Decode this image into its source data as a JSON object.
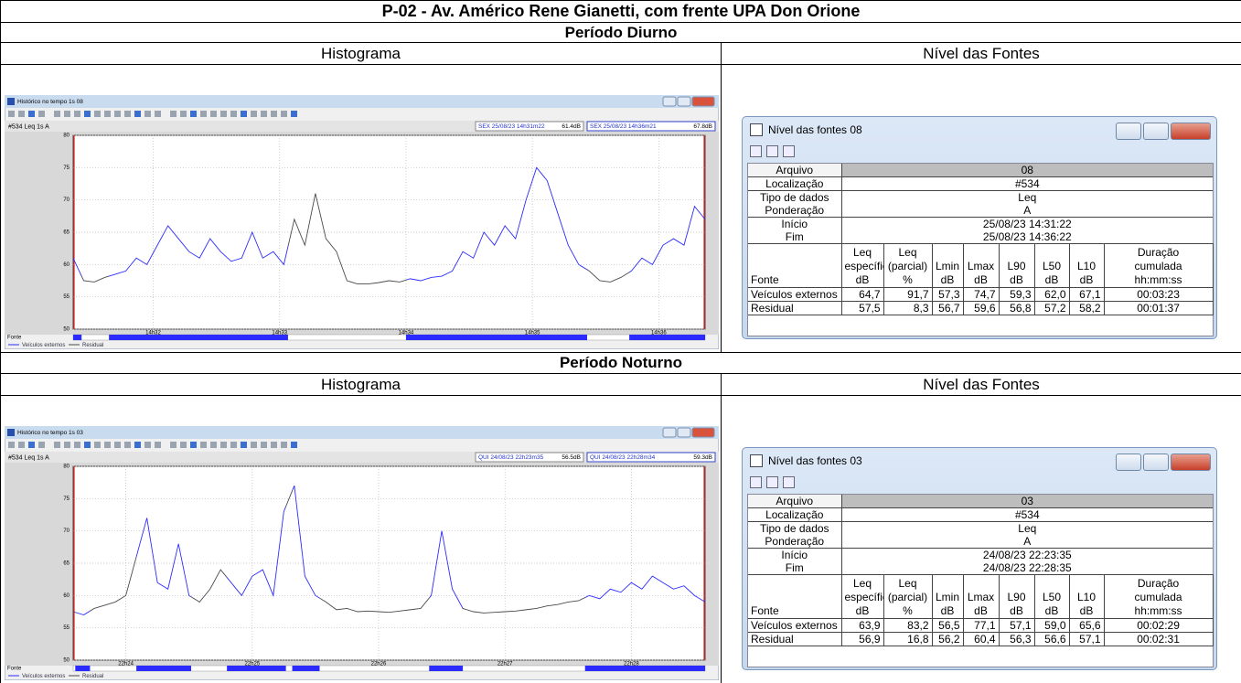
{
  "header": {
    "title": "P-02 -  Av. Américo Rene Gianetti, com frente UPA Don Orione"
  },
  "sections": [
    {
      "period": "Período Diurno",
      "left_heading": "Histograma",
      "right_heading": "Nível das Fontes",
      "histogram": {
        "window_title": "Histórico no tempo 1s 08",
        "channel": "#534  Leq 1s  A",
        "cursors": [
          {
            "time": "SEX 25/08/23 14h31m22",
            "level": "61.4dB"
          },
          {
            "time": "SEX 25/08/23 14h36m21",
            "level": "67.8dB"
          }
        ],
        "xlim": [
          0,
          300
        ],
        "xticks": [
          {
            "value": 38,
            "label": "14h32"
          },
          {
            "value": 98,
            "label": "14h33"
          },
          {
            "value": 158,
            "label": "14h34"
          },
          {
            "value": 218,
            "label": "14h35"
          },
          {
            "value": 278,
            "label": "14h36"
          }
        ],
        "ylim": [
          50,
          80
        ],
        "yticks": [
          50,
          55,
          60,
          65,
          70,
          75,
          80
        ],
        "x": [
          0,
          5,
          10,
          15,
          20,
          25,
          30,
          35,
          40,
          45,
          50,
          55,
          60,
          65,
          70,
          75,
          80,
          85,
          90,
          95,
          100,
          105,
          110,
          115,
          120,
          125,
          130,
          135,
          140,
          145,
          150,
          155,
          160,
          165,
          170,
          175,
          180,
          185,
          190,
          195,
          200,
          205,
          210,
          215,
          220,
          225,
          230,
          235,
          240,
          245,
          250,
          255,
          260,
          265,
          270,
          275,
          280,
          285,
          290,
          295,
          300
        ],
        "values": [
          61,
          57.5,
          57.3,
          58,
          58.5,
          59,
          61,
          60,
          63,
          66,
          64,
          62,
          61,
          64,
          62,
          60.5,
          61,
          65,
          61,
          62,
          60,
          67,
          63,
          71,
          64,
          62,
          57.5,
          57,
          57,
          57.2,
          57.5,
          57.3,
          57.8,
          57.5,
          58,
          58.2,
          59,
          62,
          61,
          65,
          63,
          66,
          64,
          70,
          75,
          73,
          68,
          63,
          60,
          59,
          57.5,
          57.3,
          58,
          59,
          61,
          60,
          63,
          64,
          63,
          69,
          67
        ],
        "source_label": "Fonte",
        "source_segments": [
          [
            0,
            4
          ],
          [
            17,
            102
          ],
          [
            158,
            244
          ],
          [
            264,
            300
          ]
        ],
        "legend": [
          {
            "name": "Veículos externos",
            "color": "#2b2bff"
          },
          {
            "name": "Residual",
            "color": "#4a4a4a"
          }
        ]
      },
      "sources": {
        "window_title": "Nível das fontes  08",
        "info": [
          {
            "label": "Arquivo",
            "value": "08"
          },
          {
            "label": "Localização",
            "value": "#534"
          },
          {
            "label": "Tipo de dados",
            "value": "Leq"
          },
          {
            "label": "Ponderação",
            "value": "A"
          },
          {
            "label": "Início",
            "value": "25/08/23 14:31:22"
          },
          {
            "label": "Fim",
            "value": "25/08/23 14:36:22"
          }
        ],
        "columns": [
          [
            "Fonte"
          ],
          [
            "Leq",
            "específico",
            "dB"
          ],
          [
            "Leq",
            "(parcial)",
            "%"
          ],
          [
            "Lmin",
            "dB"
          ],
          [
            "Lmax",
            "dB"
          ],
          [
            "L90",
            "dB"
          ],
          [
            "L50",
            "dB"
          ],
          [
            "L10",
            "dB"
          ],
          [
            "Duração",
            "cumulada",
            "hh:mm:ss"
          ]
        ],
        "rows": [
          [
            "Veículos externos",
            "64,7",
            "91,7",
            "57,3",
            "74,7",
            "59,3",
            "62,0",
            "67,1",
            "00:03:23"
          ],
          [
            "Residual",
            "57,5",
            "8,3",
            "56,7",
            "59,6",
            "56,8",
            "57,2",
            "58,2",
            "00:01:37"
          ]
        ]
      }
    },
    {
      "period": "Período Noturno",
      "left_heading": "Histograma",
      "right_heading": "Nível das Fontes",
      "histogram": {
        "window_title": "Histórico no tempo 1s 03",
        "channel": "#534  Leq 1s  A",
        "cursors": [
          {
            "time": "QUI 24/08/23 22h23m35",
            "level": "56.5dB"
          },
          {
            "time": "QUI 24/08/23 22h28m34",
            "level": "59.3dB"
          }
        ],
        "xlim": [
          0,
          300
        ],
        "xticks": [
          {
            "value": 25,
            "label": "22h24"
          },
          {
            "value": 85,
            "label": "22h25"
          },
          {
            "value": 145,
            "label": "22h26"
          },
          {
            "value": 205,
            "label": "22h27"
          },
          {
            "value": 265,
            "label": "22h28"
          }
        ],
        "ylim": [
          50,
          80
        ],
        "yticks": [
          50,
          55,
          60,
          65,
          70,
          75,
          80
        ],
        "x": [
          0,
          5,
          10,
          15,
          20,
          25,
          30,
          35,
          40,
          45,
          50,
          55,
          60,
          65,
          70,
          75,
          80,
          85,
          90,
          95,
          100,
          105,
          110,
          115,
          120,
          125,
          130,
          135,
          140,
          145,
          150,
          155,
          160,
          165,
          170,
          175,
          180,
          185,
          190,
          195,
          200,
          205,
          210,
          215,
          220,
          225,
          230,
          235,
          240,
          245,
          250,
          255,
          260,
          265,
          270,
          275,
          280,
          285,
          290,
          295,
          300
        ],
        "values": [
          57.5,
          57,
          58,
          58.5,
          59,
          60,
          66,
          72,
          62,
          61,
          68,
          60,
          59,
          61,
          64,
          62,
          60,
          63,
          64,
          60,
          73,
          77,
          63,
          60,
          59,
          57.8,
          58,
          57.5,
          57.6,
          57.5,
          57.4,
          57.6,
          57.8,
          58,
          60,
          70,
          61,
          58,
          57.5,
          57.3,
          57.4,
          57.5,
          57.6,
          57.8,
          58,
          58.4,
          58.6,
          59,
          59.2,
          60,
          59.5,
          61,
          60.5,
          62,
          61,
          63,
          62,
          61,
          61.5,
          60,
          59
        ],
        "source_label": "Fonte",
        "source_segments": [
          [
            1,
            8
          ],
          [
            30,
            56
          ],
          [
            73,
            101
          ],
          [
            104,
            117
          ],
          [
            169,
            185
          ],
          [
            243,
            300
          ]
        ],
        "legend": [
          {
            "name": "Veículos externos",
            "color": "#2b2bff"
          },
          {
            "name": "Residual",
            "color": "#4a4a4a"
          }
        ]
      },
      "sources": {
        "window_title": "Nível das fontes  03",
        "info": [
          {
            "label": "Arquivo",
            "value": "03"
          },
          {
            "label": "Localização",
            "value": "#534"
          },
          {
            "label": "Tipo de dados",
            "value": "Leq"
          },
          {
            "label": "Ponderação",
            "value": "A"
          },
          {
            "label": "Início",
            "value": "24/08/23 22:23:35"
          },
          {
            "label": "Fim",
            "value": "24/08/23 22:28:35"
          }
        ],
        "columns": [
          [
            "Fonte"
          ],
          [
            "Leq",
            "específico",
            "dB"
          ],
          [
            "Leq",
            "(parcial)",
            "%"
          ],
          [
            "Lmin",
            "dB"
          ],
          [
            "Lmax",
            "dB"
          ],
          [
            "L90",
            "dB"
          ],
          [
            "L50",
            "dB"
          ],
          [
            "L10",
            "dB"
          ],
          [
            "Duração",
            "cumulada",
            "hh:mm:ss"
          ]
        ],
        "rows": [
          [
            "Veículos externos",
            "63,9",
            "83,2",
            "56,5",
            "77,1",
            "57,1",
            "59,0",
            "65,6",
            "00:02:29"
          ],
          [
            "Residual",
            "56,9",
            "16,8",
            "56,2",
            "60,4",
            "56,3",
            "56,6",
            "57,1",
            "00:02:31"
          ]
        ]
      }
    }
  ]
}
